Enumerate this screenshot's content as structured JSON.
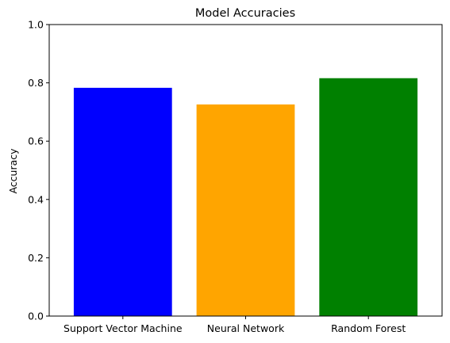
{
  "chart_data": {
    "type": "bar",
    "title": "Model Accuracies",
    "xlabel": "",
    "ylabel": "Accuracy",
    "categories": [
      "Support Vector Machine",
      "Neural Network",
      "Random Forest"
    ],
    "values": [
      0.783,
      0.726,
      0.816
    ],
    "colors": [
      "#0000ff",
      "#ffa500",
      "#008000"
    ],
    "ylim": [
      0,
      1.0
    ],
    "yticks": [
      "0.0",
      "0.2",
      "0.4",
      "0.6",
      "0.8",
      "1.0"
    ],
    "grid": false,
    "legend": "none"
  }
}
